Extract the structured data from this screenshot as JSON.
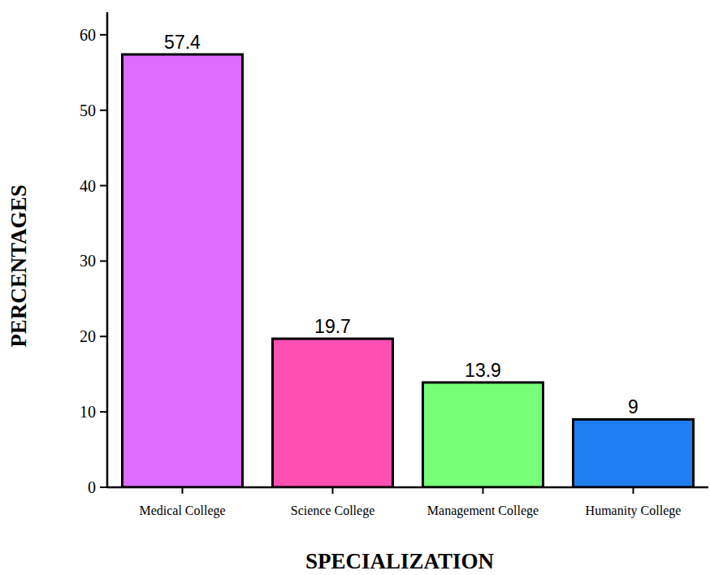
{
  "chart_data": {
    "type": "bar",
    "x_label": "SPECIALIZATION",
    "y_label": "PERCENTAGES",
    "categories": [
      "Medical College",
      "Science College",
      "Management College",
      "Humanity College"
    ],
    "values": [
      57.4,
      19.7,
      13.9,
      9
    ],
    "colors": [
      "#dd6cff",
      "#ff4fb2",
      "#77ff77",
      "#1f7ff0"
    ],
    "ylim": [
      0,
      63
    ],
    "yticks": [
      0,
      10,
      20,
      30,
      40,
      50,
      60
    ],
    "data_labels": true,
    "grid": false
  }
}
